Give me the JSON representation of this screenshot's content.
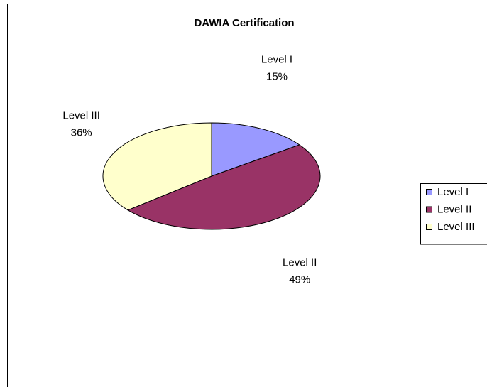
{
  "chart_data": {
    "type": "pie",
    "title": "DAWIA Certification",
    "categories": [
      "Level I",
      "Level II",
      "Level III"
    ],
    "values": [
      15,
      49,
      36
    ],
    "value_labels": [
      "15%",
      "49%",
      "36%"
    ],
    "colors": [
      "#9999ff",
      "#993366",
      "#ffffcc"
    ],
    "legend": "right"
  }
}
